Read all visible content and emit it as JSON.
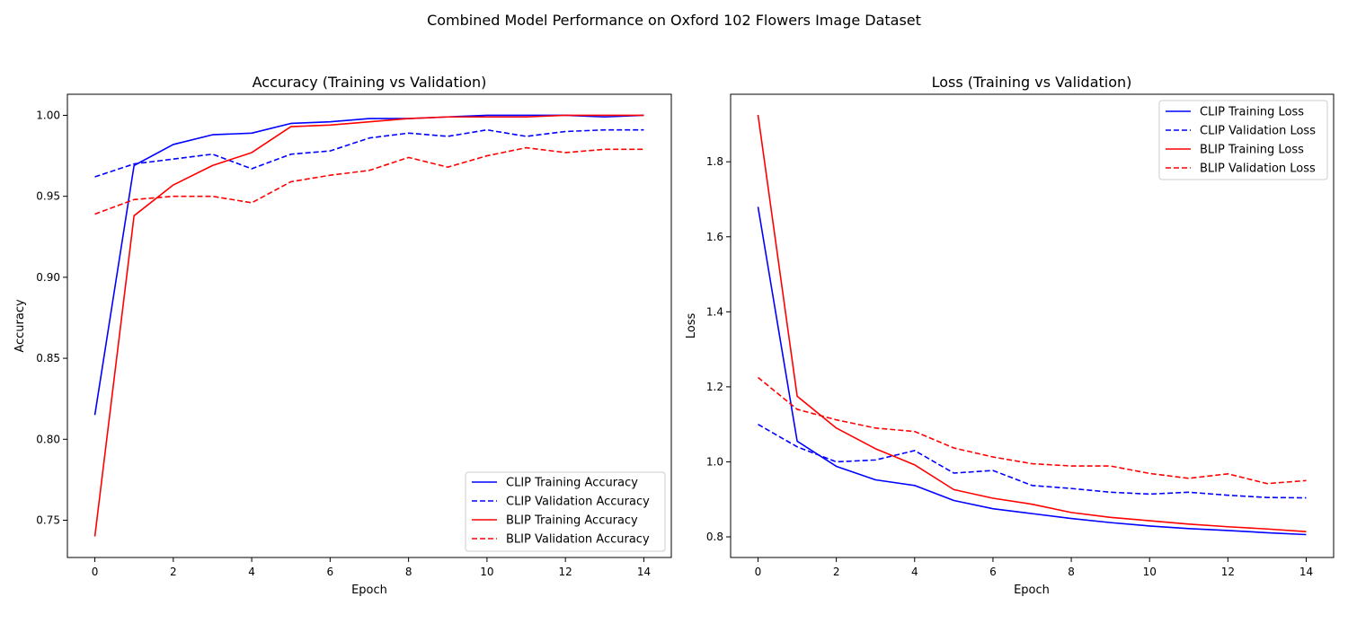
{
  "figure_title": "Combined Model Performance on Oxford 102 Flowers Image Dataset",
  "chart_data": [
    {
      "type": "line",
      "title": "Accuracy (Training vs Validation)",
      "xlabel": "Epoch",
      "ylabel": "Accuracy",
      "xlim": [
        -0.7,
        14.7
      ],
      "ylim": [
        0.727,
        1.013
      ],
      "xticks": [
        0,
        2,
        4,
        6,
        8,
        10,
        12,
        14
      ],
      "xtick_labels": [
        "0",
        "2",
        "4",
        "6",
        "8",
        "10",
        "12",
        "14"
      ],
      "yticks": [
        0.75,
        0.8,
        0.85,
        0.9,
        0.95,
        1.0
      ],
      "ytick_labels": [
        "0.75",
        "0.80",
        "0.85",
        "0.90",
        "0.95",
        "1.00"
      ],
      "grid": false,
      "legend_position": "lower-right",
      "x": [
        0,
        1,
        2,
        3,
        4,
        5,
        6,
        7,
        8,
        9,
        10,
        11,
        12,
        13,
        14
      ],
      "series": [
        {
          "name": "CLIP Training Accuracy",
          "color": "#0000ff",
          "dash": "solid",
          "values": [
            0.815,
            0.969,
            0.982,
            0.988,
            0.989,
            0.995,
            0.996,
            0.998,
            0.998,
            0.999,
            1.0,
            1.0,
            1.0,
            0.999,
            1.0
          ]
        },
        {
          "name": "CLIP Validation Accuracy",
          "color": "#0000ff",
          "dash": "dashed",
          "values": [
            0.962,
            0.97,
            0.973,
            0.976,
            0.967,
            0.976,
            0.978,
            0.986,
            0.989,
            0.987,
            0.991,
            0.987,
            0.99,
            0.991,
            0.991
          ]
        },
        {
          "name": "BLIP Training Accuracy",
          "color": "#ff0000",
          "dash": "solid",
          "values": [
            0.74,
            0.938,
            0.957,
            0.969,
            0.977,
            0.993,
            0.994,
            0.996,
            0.998,
            0.999,
            0.999,
            0.999,
            1.0,
            1.0,
            1.0
          ]
        },
        {
          "name": "BLIP Validation Accuracy",
          "color": "#ff0000",
          "dash": "dashed",
          "values": [
            0.939,
            0.948,
            0.95,
            0.95,
            0.946,
            0.959,
            0.963,
            0.966,
            0.974,
            0.968,
            0.975,
            0.98,
            0.977,
            0.979,
            0.979
          ]
        }
      ]
    },
    {
      "type": "line",
      "title": "Loss (Training vs Validation)",
      "xlabel": "Epoch",
      "ylabel": "Loss",
      "xlim": [
        -0.7,
        14.7
      ],
      "ylim": [
        0.745,
        1.98
      ],
      "xticks": [
        0,
        2,
        4,
        6,
        8,
        10,
        12,
        14
      ],
      "xtick_labels": [
        "0",
        "2",
        "4",
        "6",
        "8",
        "10",
        "12",
        "14"
      ],
      "yticks": [
        0.8,
        1.0,
        1.2,
        1.4,
        1.6,
        1.8
      ],
      "ytick_labels": [
        "0.8",
        "1.0",
        "1.2",
        "1.4",
        "1.6",
        "1.8"
      ],
      "grid": false,
      "legend_position": "upper-right",
      "x": [
        0,
        1,
        2,
        3,
        4,
        5,
        6,
        7,
        8,
        9,
        10,
        11,
        12,
        13,
        14
      ],
      "series": [
        {
          "name": "CLIP Training Loss",
          "color": "#0000ff",
          "dash": "solid",
          "values": [
            1.68,
            1.055,
            0.988,
            0.952,
            0.937,
            0.897,
            0.875,
            0.862,
            0.849,
            0.838,
            0.829,
            0.822,
            0.817,
            0.811,
            0.806
          ]
        },
        {
          "name": "CLIP Validation Loss",
          "color": "#0000ff",
          "dash": "dashed",
          "values": [
            1.1,
            1.04,
            1.0,
            1.005,
            1.03,
            0.97,
            0.977,
            0.937,
            0.929,
            0.919,
            0.914,
            0.919,
            0.911,
            0.905,
            0.904
          ]
        },
        {
          "name": "BLIP Training Loss",
          "color": "#ff0000",
          "dash": "solid",
          "values": [
            1.925,
            1.175,
            1.09,
            1.035,
            0.992,
            0.926,
            0.903,
            0.887,
            0.865,
            0.852,
            0.843,
            0.834,
            0.827,
            0.821,
            0.814
          ]
        },
        {
          "name": "BLIP Validation Loss",
          "color": "#ff0000",
          "dash": "dashed",
          "values": [
            1.225,
            1.14,
            1.112,
            1.09,
            1.081,
            1.037,
            1.013,
            0.995,
            0.989,
            0.989,
            0.969,
            0.956,
            0.968,
            0.942,
            0.95
          ]
        }
      ]
    }
  ]
}
